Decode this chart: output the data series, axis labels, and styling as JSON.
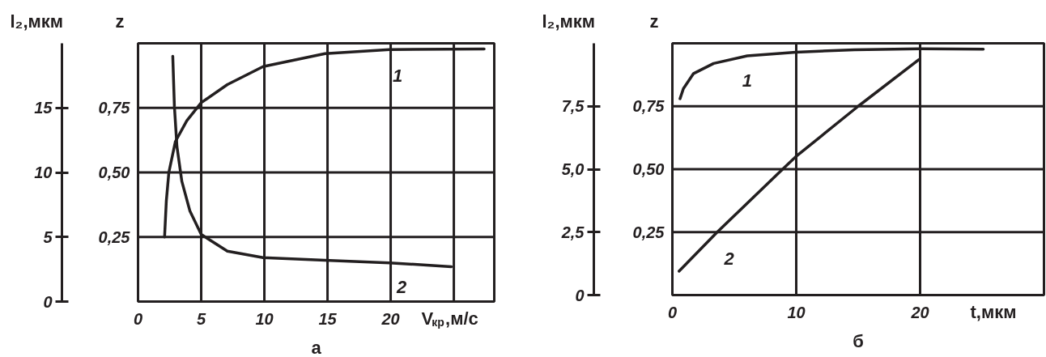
{
  "chart_data": [
    {
      "type": "line",
      "title": "а",
      "xlabel": "V$_{кр}$,м/с",
      "ylabel": "z",
      "y2label": "l₂,мкм",
      "xlim": [
        0,
        28.2
      ],
      "xticks": [
        0,
        5,
        10,
        15,
        20,
        {
          "value": 25,
          "label": null
        }
      ],
      "ylim": [
        0,
        1
      ],
      "yticks": [
        {
          "value": 0.25,
          "label": "0,25"
        },
        {
          "value": 0.5,
          "label": "0,50"
        },
        {
          "value": 0.75,
          "label": "0,75"
        }
      ],
      "y2lim": [
        0,
        20
      ],
      "y2ticks": [
        0,
        5,
        10,
        15
      ],
      "grid": true,
      "line_style": "solid",
      "series": [
        {
          "name": "1",
          "color": "#231f20",
          "x": [
            2.1,
            2.24,
            2.44,
            2.96,
            3.86,
            5.0,
            7.07,
            9.9,
            14.8,
            19.9,
            27.4
          ],
          "values": [
            0.25,
            0.39,
            0.5,
            0.62,
            0.7,
            0.77,
            0.84,
            0.91,
            0.96,
            0.976,
            0.978
          ]
        },
        {
          "name": "2",
          "color": "#231f20",
          "axis": "y2",
          "x": [
            2.75,
            2.88,
            3.08,
            3.47,
            4.11,
            5.0,
            7.07,
            9.9,
            14.8,
            19.9,
            24.8
          ],
          "values": [
            19.0,
            15.1,
            12.0,
            9.3,
            7.0,
            5.2,
            3.9,
            3.4,
            3.2,
            3.0,
            2.7
          ]
        }
      ]
    },
    {
      "type": "line",
      "title": "б",
      "xlabel": "t,мкм",
      "ylabel": "z",
      "y2label": "l₂,мкм",
      "xlim": [
        0,
        30
      ],
      "xticks": [
        0,
        10,
        20
      ],
      "ylim": [
        0,
        1
      ],
      "yticks": [
        {
          "value": 0.25,
          "label": "0,25"
        },
        {
          "value": 0.5,
          "label": "0,50"
        },
        {
          "value": 0.75,
          "label": "0,75"
        }
      ],
      "y2lim": [
        0,
        10
      ],
      "y2ticks": [
        0,
        {
          "value": 2.5,
          "label": "2,5"
        },
        {
          "value": 5,
          "label": "5,0"
        },
        {
          "value": 7.5,
          "label": "7,5"
        }
      ],
      "grid": true,
      "line_style": "solid",
      "series": [
        {
          "name": "1",
          "color": "#231f20",
          "x": [
            0.62,
            0.89,
            1.71,
            3.33,
            6.04,
            9.97,
            14.7,
            20.0,
            25.1
          ],
          "values": [
            0.78,
            0.82,
            0.88,
            0.92,
            0.95,
            0.965,
            0.974,
            0.978,
            0.977
          ]
        },
        {
          "name": "2",
          "color": "#231f20",
          "axis": "y2",
          "x": [
            0.54,
            3.6,
            8.9,
            9.97,
            15.0,
            19.9
          ],
          "values": [
            0.95,
            2.49,
            5.0,
            5.5,
            7.5,
            9.35
          ]
        }
      ]
    }
  ]
}
